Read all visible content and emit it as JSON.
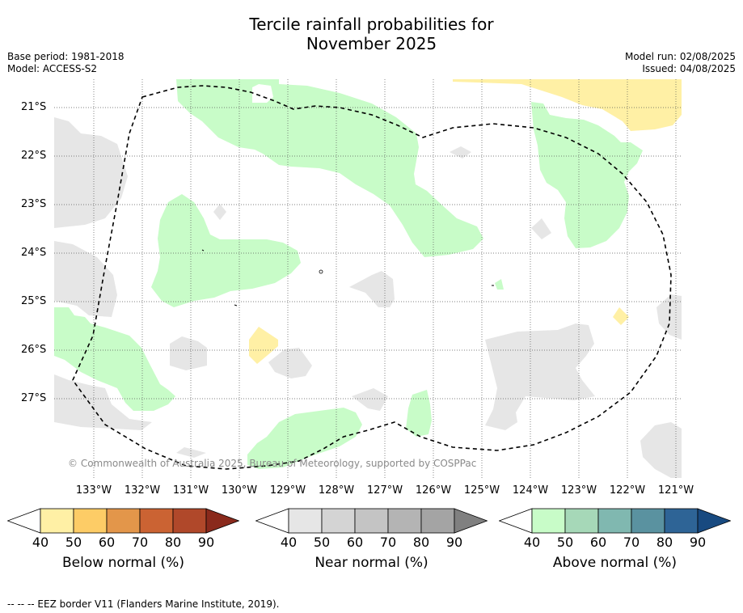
{
  "title_line1": "Tercile rainfall probabilities for",
  "title_line2": "November 2025",
  "meta_left": {
    "base_period": "Base period: 1981-2018",
    "model": "Model: ACCESS-S2"
  },
  "meta_right": {
    "model_run": "Model run: 02/08/2025",
    "issued": "Issued: 04/08/2025"
  },
  "copyright": "© Commonwealth of Australia 2025, Bureau of Meteorology, supported by COSPPac",
  "lat_labels": [
    "21°S",
    "22°S",
    "23°S",
    "24°S",
    "25°S",
    "26°S",
    "27°S"
  ],
  "lon_labels": [
    "133°W",
    "132°W",
    "131°W",
    "130°W",
    "129°W",
    "128°W",
    "127°W",
    "126°W",
    "125°W",
    "124°W",
    "123°W",
    "122°W",
    "121°W"
  ],
  "colorbars": [
    {
      "label": "Below normal (%)",
      "ticks": [
        "40",
        "50",
        "60",
        "70",
        "80",
        "90"
      ],
      "colors": [
        "#fff0a5",
        "#fdcc66",
        "#e3964a",
        "#cb6333",
        "#b0482a",
        "#8a2a1c"
      ]
    },
    {
      "label": "Near normal (%)",
      "ticks": [
        "40",
        "50",
        "60",
        "70",
        "80",
        "90"
      ],
      "colors": [
        "#e6e6e6",
        "#d4d4d4",
        "#c4c4c4",
        "#b4b4b4",
        "#a4a4a4",
        "#808080"
      ]
    },
    {
      "label": "Above normal (%)",
      "ticks": [
        "40",
        "50",
        "60",
        "70",
        "80",
        "90"
      ],
      "colors": [
        "#c8fcc8",
        "#a6d8b8",
        "#80b8b0",
        "#5a92a0",
        "#2e6496",
        "#184a80"
      ]
    }
  ],
  "footer": "--  --  -- EEZ border V11 (Flanders Marine Institute, 2019)."
}
